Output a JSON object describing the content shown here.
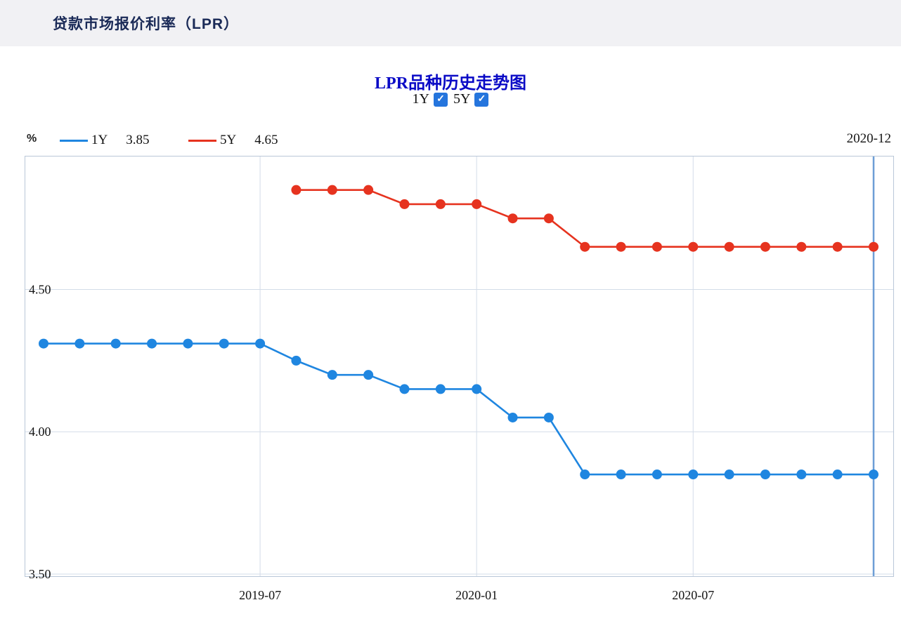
{
  "page": {
    "header_title": "贷款市场报价利率（LPR）"
  },
  "chart": {
    "title": "LPR品种历史走势图",
    "controls": [
      {
        "label": "1Y",
        "checked": true
      },
      {
        "label": "5Y",
        "checked": true
      }
    ],
    "unit_label": "%",
    "current_date": "2020-12",
    "legend": [
      {
        "name": "1Y",
        "value": "3.85",
        "color": "#1f86e0"
      },
      {
        "name": "5Y",
        "value": "4.65",
        "color": "#e6331f"
      }
    ],
    "check_glyph": "✓"
  },
  "chart_data": {
    "type": "line",
    "title": "LPR品种历史走势图",
    "ylabel": "%",
    "x": [
      "2019-01",
      "2019-02",
      "2019-03",
      "2019-04",
      "2019-05",
      "2019-06",
      "2019-07",
      "2019-08",
      "2019-09",
      "2019-10",
      "2019-11",
      "2019-12",
      "2020-01",
      "2020-02",
      "2020-03",
      "2020-04",
      "2020-05",
      "2020-06",
      "2020-07",
      "2020-08",
      "2020-09",
      "2020-10",
      "2020-11",
      "2020-12"
    ],
    "series": [
      {
        "name": "1Y",
        "color": "#1f86e0",
        "values": [
          4.31,
          4.31,
          4.31,
          4.31,
          4.31,
          4.31,
          4.31,
          4.25,
          4.2,
          4.2,
          4.15,
          4.15,
          4.15,
          4.05,
          4.05,
          3.85,
          3.85,
          3.85,
          3.85,
          3.85,
          3.85,
          3.85,
          3.85,
          3.85
        ]
      },
      {
        "name": "5Y",
        "color": "#e6331f",
        "values": [
          null,
          null,
          null,
          null,
          null,
          null,
          null,
          4.85,
          4.85,
          4.85,
          4.8,
          4.8,
          4.8,
          4.75,
          4.75,
          4.65,
          4.65,
          4.65,
          4.65,
          4.65,
          4.65,
          4.65,
          4.65,
          4.65
        ]
      }
    ],
    "xticks": [
      "2019-07",
      "2020-01",
      "2020-07"
    ],
    "yticks": [
      "4.50",
      "4.00",
      "3.50"
    ],
    "ylim": [
      3.49,
      4.97
    ],
    "grid": true,
    "legend_position": "top",
    "marker_line_x": "2020-12",
    "marker_line_color": "#6d9ed6",
    "grid_color": "#d3dce8",
    "border_color": "#b9c7d8"
  }
}
